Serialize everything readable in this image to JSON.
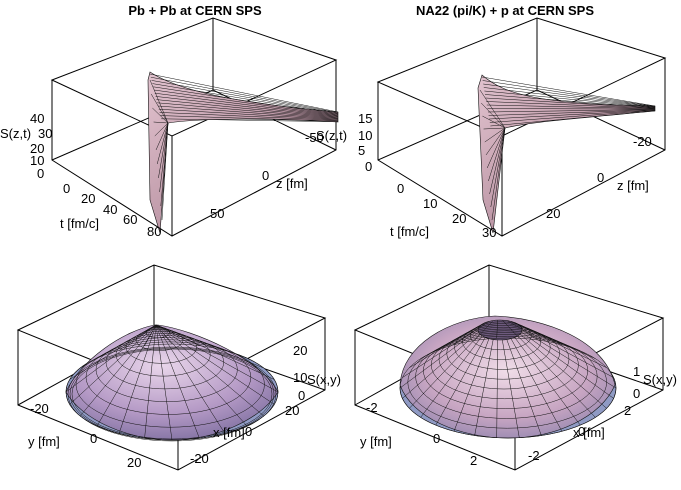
{
  "chart_data": [
    {
      "type": "surface3d",
      "title": "Pb + Pb at CERN SPS",
      "zlabel": "S(z,t)",
      "xlabel": "t [fm/c]",
      "ylabel": "z [fm]",
      "zticks": [
        "40",
        "30",
        "20",
        "10",
        "0"
      ],
      "xticks": [
        "0",
        "20",
        "40",
        "60",
        "80"
      ],
      "yticks": [
        "-50",
        "0",
        "50"
      ],
      "colors": {
        "surface": "#c9a3b3",
        "edge": "#111111"
      }
    },
    {
      "type": "surface3d",
      "title": "NA22 (pi/K) + p at CERN SPS",
      "zlabel": "S(z,t)",
      "xlabel": "t [fm/c]",
      "ylabel": "z [fm]",
      "zticks": [
        "15",
        "10",
        "5",
        "0"
      ],
      "xticks": [
        "0",
        "10",
        "20",
        "30"
      ],
      "yticks": [
        "-20",
        "0",
        "20"
      ],
      "colors": {
        "surface": "#c9a3b3",
        "edge": "#111111"
      }
    },
    {
      "type": "surface3d",
      "title": "",
      "zlabel": "S(x,y)",
      "xlabel": "x [fm]",
      "ylabel": "y [fm]",
      "zticks": [
        "20",
        "10",
        "0"
      ],
      "xticks": [
        "20",
        "0",
        "-20"
      ],
      "yticks": [
        "-20",
        "0",
        "20"
      ],
      "colors": {
        "surface": "#b8a3c9",
        "edge": "#111111"
      }
    },
    {
      "type": "surface3d",
      "title": "",
      "zlabel": "S(x,y)",
      "xlabel": "x [fm]",
      "ylabel": "y [fm]",
      "zticks": [
        "1",
        "0"
      ],
      "xticks": [
        "2",
        "0",
        "-2"
      ],
      "yticks": [
        "-2",
        "0",
        "2"
      ],
      "colors": {
        "surface": "#b8a3c9",
        "edge": "#111111"
      }
    }
  ]
}
